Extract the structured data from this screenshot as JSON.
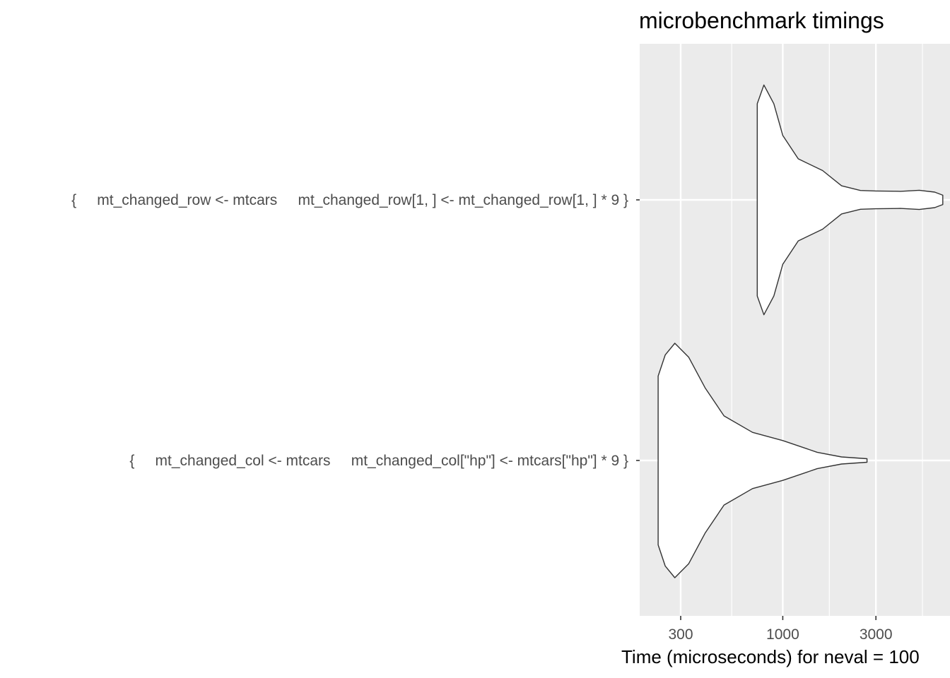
{
  "chart_data": {
    "type": "violin",
    "title": "microbenchmark timings",
    "xlabel": "Time (microseconds) for neval = 100",
    "ylabel": "",
    "x_scale": "log10",
    "xlim": [
      210,
      7000
    ],
    "x_ticks": [
      300,
      1000,
      3000
    ],
    "x_tick_labels": [
      "300",
      "1000",
      "3000"
    ],
    "grid": true,
    "background": "#ebebeb",
    "gridline_color": "#ffffff",
    "violin_fill": "#ffffff",
    "violin_stroke": "#333333",
    "categories": [
      "{     mt_changed_row <- mtcars     mt_changed_row[1, ] <- mt_changed_row[1, ] * 9 }",
      "{     mt_changed_col <- mtcars     mt_changed_col[\"hp\"] <- mtcars[\"hp\"] * 9 }"
    ],
    "series": [
      {
        "category_index": 0,
        "density": [
          [
            740,
            0.82
          ],
          [
            800,
            0.98
          ],
          [
            900,
            0.82
          ],
          [
            1000,
            0.55
          ],
          [
            1200,
            0.35
          ],
          [
            1600,
            0.25
          ],
          [
            2000,
            0.12
          ],
          [
            2500,
            0.08
          ],
          [
            3000,
            0.076
          ],
          [
            4000,
            0.073
          ],
          [
            5000,
            0.082
          ],
          [
            6000,
            0.066
          ],
          [
            6600,
            0.04
          ]
        ]
      },
      {
        "category_index": 1,
        "density": [
          [
            230,
            0.72
          ],
          [
            250,
            0.9
          ],
          [
            280,
            1.0
          ],
          [
            330,
            0.88
          ],
          [
            400,
            0.62
          ],
          [
            500,
            0.38
          ],
          [
            700,
            0.24
          ],
          [
            1000,
            0.17
          ],
          [
            1500,
            0.07
          ],
          [
            2000,
            0.03
          ],
          [
            2700,
            0.015
          ]
        ]
      }
    ]
  }
}
